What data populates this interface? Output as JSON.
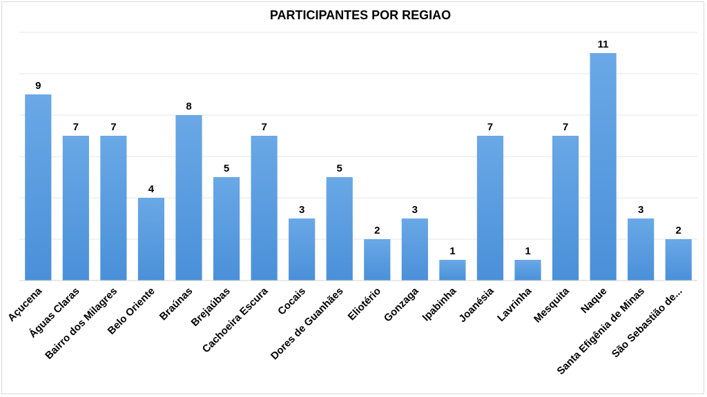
{
  "chart_data": {
    "type": "bar",
    "title": "PARTICIPANTES POR REGIAO",
    "xlabel": "",
    "ylabel": "",
    "ylim": [
      0,
      12
    ],
    "grid": true,
    "legend": "none",
    "bar_color": "#4a90d9",
    "bar_color_light": "#6aa8e6",
    "categories": [
      "Açucena",
      "Águas Claras",
      "Bairro dos Milagres",
      "Belo Oriente",
      "Braúnas",
      "Brejaúbas",
      "Cachoeira Escura",
      "Cocais",
      "Dores de Guanhães",
      "Eliotério",
      "Gonzaga",
      "Ipabinha",
      "Joanésia",
      "Lavrinha",
      "Mesquita",
      "Naque",
      "Santa Efigênia de Minas",
      "São Sebastião de..."
    ],
    "values": [
      9,
      7,
      7,
      4,
      8,
      5,
      7,
      3,
      5,
      2,
      3,
      1,
      7,
      1,
      7,
      11,
      3,
      2
    ]
  }
}
